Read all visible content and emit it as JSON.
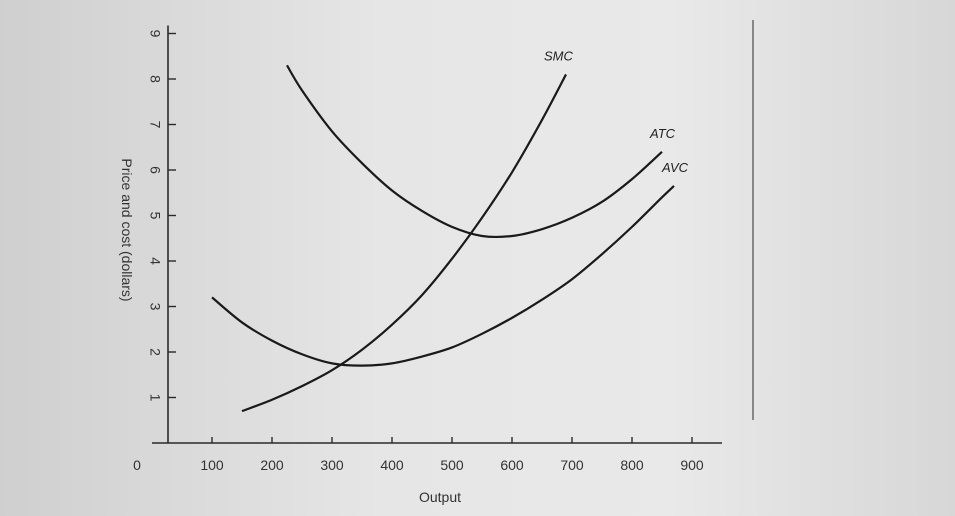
{
  "chart_data": {
    "type": "line",
    "xlabel": "Output",
    "ylabel": "Price and cost (dollars)",
    "xlim": [
      0,
      950
    ],
    "ylim": [
      0,
      9
    ],
    "x_ticks": [
      100,
      200,
      300,
      400,
      500,
      600,
      700,
      800,
      900
    ],
    "y_ticks": [
      1,
      2,
      3,
      4,
      5,
      6,
      7,
      8,
      9
    ],
    "origin_label": "0",
    "grid": false,
    "series": [
      {
        "name": "SMC",
        "x": [
          150,
          200,
          250,
          300,
          350,
          400,
          450,
          500,
          550,
          600,
          650,
          690
        ],
        "y": [
          0.7,
          0.95,
          1.25,
          1.6,
          2.05,
          2.6,
          3.25,
          4.05,
          4.95,
          5.95,
          7.1,
          8.1
        ]
      },
      {
        "name": "ATC",
        "x": [
          225,
          250,
          300,
          350,
          400,
          450,
          500,
          550,
          600,
          650,
          700,
          750,
          800,
          850
        ],
        "y": [
          8.3,
          7.75,
          6.85,
          6.15,
          5.55,
          5.1,
          4.75,
          4.55,
          4.55,
          4.7,
          4.95,
          5.3,
          5.8,
          6.4
        ]
      },
      {
        "name": "AVC",
        "x": [
          100,
          150,
          200,
          250,
          300,
          350,
          400,
          450,
          500,
          550,
          600,
          650,
          700,
          750,
          800,
          850,
          870
        ],
        "y": [
          3.2,
          2.65,
          2.25,
          1.95,
          1.75,
          1.7,
          1.75,
          1.9,
          2.1,
          2.4,
          2.75,
          3.15,
          3.6,
          4.15,
          4.75,
          5.4,
          5.65
        ]
      }
    ]
  }
}
